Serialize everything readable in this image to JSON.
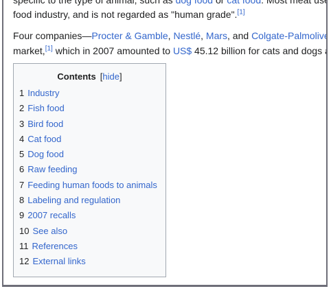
{
  "article": {
    "line0": {
      "pre": "specific to the type of animal, such as ",
      "link1": "dog food",
      "mid": " or ",
      "link2": "cat food",
      "post": ". Most meat used"
    },
    "line1": {
      "text": "food industry, and is not regarded as \"human grade\".",
      "ref": "[1]"
    },
    "line2": {
      "pre": "Four companies—",
      "link1": "Procter & Gamble",
      "sep1": ", ",
      "link2": "Nestlé",
      "sep2": ", ",
      "link3": "Mars",
      "sep3": ", and ",
      "link4": "Colgate-Palmolive"
    },
    "line3": {
      "pre": "market,",
      "ref": "[1]",
      "mid": " which in 2007 amounted to ",
      "link": "US$",
      "post": " 45.12 billion for cats and dogs a"
    }
  },
  "toc": {
    "title": "Contents",
    "toggle_open": "[",
    "toggle_label": "hide",
    "toggle_close": "]",
    "items": [
      {
        "num": "1",
        "label": "Industry"
      },
      {
        "num": "2",
        "label": "Fish food"
      },
      {
        "num": "3",
        "label": "Bird food"
      },
      {
        "num": "4",
        "label": "Cat food"
      },
      {
        "num": "5",
        "label": "Dog food"
      },
      {
        "num": "6",
        "label": "Raw feeding"
      },
      {
        "num": "7",
        "label": "Feeding human foods to animals"
      },
      {
        "num": "8",
        "label": "Labeling and regulation"
      },
      {
        "num": "9",
        "label": "2007 recalls"
      },
      {
        "num": "10",
        "label": "See also"
      },
      {
        "num": "11",
        "label": "References"
      },
      {
        "num": "12",
        "label": "External links"
      }
    ]
  },
  "colors": {
    "link": "#3366cc",
    "text": "#202122",
    "toc_border": "#a2a9b1",
    "toc_bg": "#f8f9fa"
  }
}
